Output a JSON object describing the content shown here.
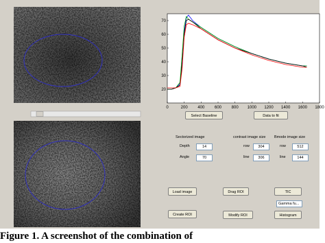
{
  "chart_data": {
    "type": "line",
    "x": [
      0,
      50,
      100,
      150,
      175,
      200,
      225,
      250,
      300,
      400,
      500,
      600,
      800,
      1000,
      1200,
      1400,
      1600,
      1650
    ],
    "series": [
      {
        "color": "#0000ff",
        "values": [
          20,
          20,
          21,
          24,
          40,
          62,
          72,
          74,
          70,
          65,
          61,
          57,
          51,
          46,
          42,
          39,
          37,
          37
        ]
      },
      {
        "color": "#00aa00",
        "values": [
          20,
          20,
          21,
          25,
          45,
          66,
          73,
          71,
          69,
          65,
          61,
          57,
          51,
          46,
          42,
          39,
          37,
          37
        ]
      },
      {
        "color": "#000000",
        "values": [
          20,
          20,
          21,
          23,
          38,
          60,
          70,
          71,
          69,
          64,
          60,
          56,
          50,
          46,
          42,
          39,
          37,
          36
        ]
      },
      {
        "color": "#ff0000",
        "values": [
          21,
          21,
          21,
          22,
          35,
          58,
          67,
          68,
          67,
          64,
          60,
          56,
          50,
          45,
          41,
          38,
          36,
          36
        ]
      }
    ],
    "xlim": [
      0,
      1800
    ],
    "xticks": [
      0,
      200,
      400,
      600,
      800,
      1000,
      1200,
      1400,
      1600,
      1800
    ],
    "ylim": [
      10,
      75
    ],
    "yticks": [
      20,
      30,
      40,
      50,
      60,
      70
    ]
  },
  "buttons": {
    "select_baseline": "Select Baseline",
    "data_to_fit": "Data to fit",
    "load_image": "Load image",
    "drag_roi": "Drag ROI",
    "tic": "TIC",
    "create_roi": "Create ROI",
    "modify_roi": "Modify ROI",
    "histogram": "Histogram"
  },
  "popup": "Gamma fu...",
  "sectorized": {
    "title": "Sectorized image",
    "depth_label": "Depth",
    "depth": 14,
    "angle_label": "Angle",
    "angle": 70
  },
  "contrast": {
    "title": "contrast image size",
    "row_label": "row",
    "row": 304,
    "line_label": "line",
    "line": 306
  },
  "bmode": {
    "title": "Bmode image size",
    "row_label": "row",
    "row": 512,
    "line_label": "line",
    "line": 144
  },
  "caption": "Figure 1. A screenshot of the combination of"
}
